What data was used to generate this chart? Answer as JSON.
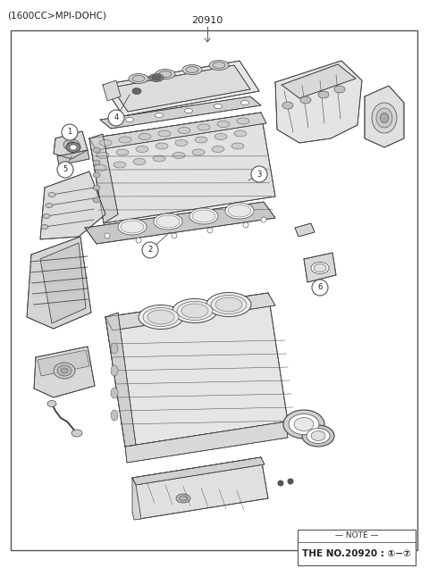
{
  "title_top_left": "(1600CC>MPI-DOHC)",
  "part_number_top": "20910",
  "note_line1": "— NOTE —",
  "note_line2": "THE NO.20920 : ①−⑦",
  "bg_color": "#ffffff",
  "border_color": "#555555",
  "text_color": "#222222",
  "figsize": [
    4.8,
    6.55
  ],
  "dpi": 100,
  "lc": "#444444",
  "lw": 0.6
}
